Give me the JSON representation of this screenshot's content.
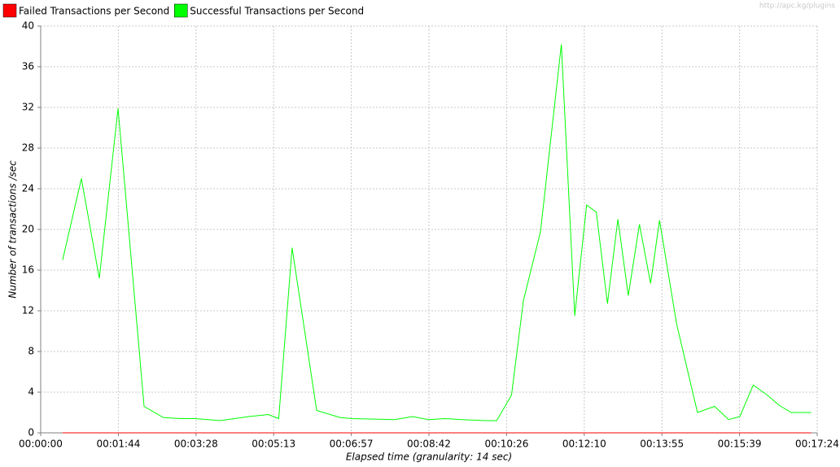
{
  "chart_data": {
    "type": "line",
    "watermark": "http://apc.kg/plugins",
    "xlabel": "Elapsed time (granularity: 14 sec)",
    "ylabel": "Number of transactions /sec",
    "x": [
      29.5,
      54.7,
      78.8,
      104,
      139,
      165,
      188,
      208,
      241,
      280,
      306,
      320,
      338,
      371,
      403,
      419,
      476,
      500,
      521,
      544,
      566,
      599,
      613,
      633,
      649,
      672,
      700,
      718,
      734,
      747,
      762,
      776,
      790,
      805,
      820,
      832,
      855,
      883,
      906,
      925,
      940,
      958,
      977,
      993,
      1009,
      1036
    ],
    "series": [
      {
        "name": "Failed Transactions per Second",
        "color": "#ff0000",
        "values": [
          0,
          0,
          0,
          0,
          0,
          0,
          0,
          0,
          0,
          0,
          0,
          0,
          0,
          0,
          0,
          0,
          0,
          0,
          0,
          0,
          0,
          0,
          0,
          0,
          0,
          0,
          0,
          0,
          0,
          0,
          0,
          0,
          0,
          0,
          0,
          0,
          0,
          0,
          0,
          0,
          0,
          0,
          0,
          0,
          0,
          0
        ]
      },
      {
        "name": "Successful Transactions per Second",
        "color": "#00ff00",
        "values": [
          17.0,
          25.0,
          15.2,
          31.9,
          2.6,
          1.5,
          1.4,
          1.4,
          1.2,
          1.6,
          1.8,
          1.4,
          18.2,
          2.2,
          1.5,
          1.4,
          1.3,
          1.6,
          1.3,
          1.4,
          1.3,
          1.2,
          1.2,
          3.7,
          13.0,
          19.8,
          38.2,
          11.5,
          22.4,
          21.7,
          12.7,
          21.0,
          13.5,
          20.5,
          14.7,
          20.9,
          10.7,
          2.0,
          2.6,
          1.3,
          1.6,
          4.7,
          3.7,
          2.7,
          2.0,
          2.0
        ]
      }
    ],
    "xlim": [
      0,
      1044
    ],
    "xticks": [
      {
        "value": 0,
        "label": "00:00:00"
      },
      {
        "value": 104.4,
        "label": "00:01:44"
      },
      {
        "value": 208.8,
        "label": "00:03:28"
      },
      {
        "value": 313.2,
        "label": "00:05:13"
      },
      {
        "value": 417.6,
        "label": "00:06:57"
      },
      {
        "value": 522,
        "label": "00:08:42"
      },
      {
        "value": 626.4,
        "label": "00:10:26"
      },
      {
        "value": 730.8,
        "label": "00:12:10"
      },
      {
        "value": 835.2,
        "label": "00:13:55"
      },
      {
        "value": 939.6,
        "label": "00:15:39"
      },
      {
        "value": 1044,
        "label": "00:17:24"
      }
    ],
    "ylim": [
      0,
      40
    ],
    "yticks": [
      0,
      4,
      8,
      12,
      16,
      20,
      24,
      28,
      32,
      36,
      40
    ],
    "grid": true
  }
}
